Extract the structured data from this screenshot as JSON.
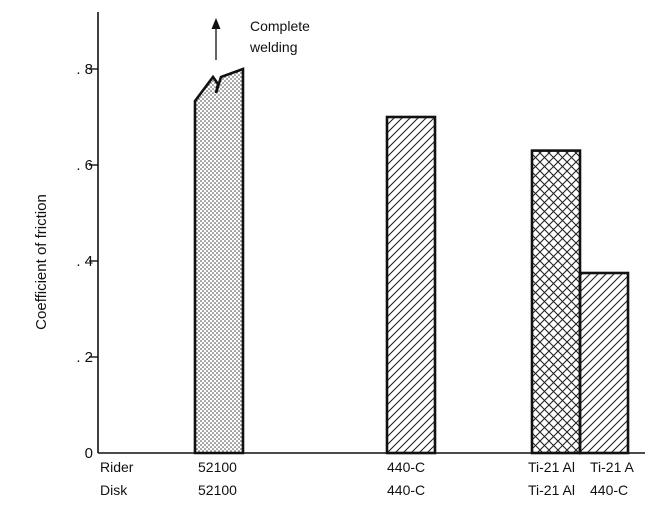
{
  "chart_data": {
    "type": "bar",
    "title": "",
    "xlabel": "",
    "ylabel": "Coefficient of friction",
    "ylim": [
      0,
      0.9
    ],
    "yticks": [
      {
        "value": 0,
        "label": "0"
      },
      {
        "value": 0.2,
        "label": ". 2"
      },
      {
        "value": 0.4,
        "label": ". 4"
      },
      {
        "value": 0.6,
        "label": ". 6"
      },
      {
        "value": 0.8,
        "label": ". 8"
      }
    ],
    "row_labels": {
      "rider": "Rider",
      "disk": "Disk"
    },
    "categories": [
      {
        "rider": "52100",
        "disk": "52100"
      },
      {
        "rider": "440-C",
        "disk": "440-C"
      },
      {
        "rider": "Ti-21 Al",
        "disk": "Ti-21 Al"
      },
      {
        "rider": "Ti-21 A",
        "disk": "440-C"
      }
    ],
    "values": [
      0.8,
      0.7,
      0.63,
      0.375
    ],
    "patterns": [
      "dots",
      "diagonal-hatch",
      "cross-hatch",
      "diagonal-hatch"
    ],
    "annotation": {
      "line1": "Complete",
      "line2": "welding"
    },
    "grid": false,
    "legend": "none"
  }
}
